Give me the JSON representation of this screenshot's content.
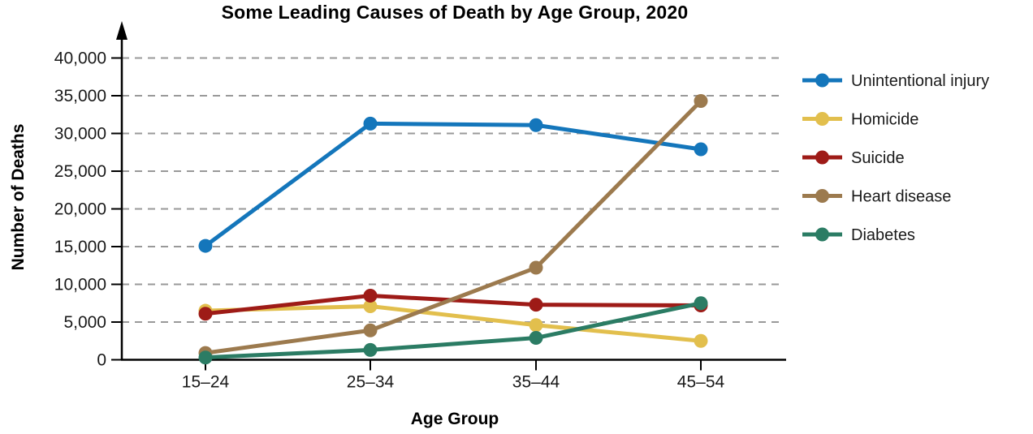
{
  "chart_data": {
    "type": "line",
    "title": "Some Leading Causes of Death by Age Group, 2020",
    "xlabel": "Age Group",
    "ylabel": "Number of Deaths",
    "categories": [
      "15–24",
      "25–34",
      "35–44",
      "45–54"
    ],
    "yticks": [
      "0",
      "5,000",
      "10,000",
      "15,000",
      "20,000",
      "25,000",
      "30,000",
      "35,000",
      "40,000"
    ],
    "ylim": [
      0,
      40000
    ],
    "ytick_step": 5000,
    "grid": "horizontal-dashed",
    "legend_position": "right",
    "series": [
      {
        "name": "Unintentional injury",
        "color": "#1476bb",
        "values": [
          15100,
          31300,
          31100,
          27900
        ]
      },
      {
        "name": "Homicide",
        "color": "#e2bf4d",
        "values": [
          6500,
          7100,
          4600,
          2500
        ]
      },
      {
        "name": "Suicide",
        "color": "#9e1b17",
        "values": [
          6100,
          8500,
          7300,
          7200
        ]
      },
      {
        "name": "Heart disease",
        "color": "#9c7a4e",
        "values": [
          900,
          3900,
          12200,
          34300
        ]
      },
      {
        "name": "Diabetes",
        "color": "#2b7c64",
        "values": [
          300,
          1300,
          2900,
          7500
        ]
      }
    ]
  },
  "colors": {
    "background": "#ffffff",
    "grid": "#999999",
    "axis": "#000000",
    "text": "#1a1a1a"
  }
}
